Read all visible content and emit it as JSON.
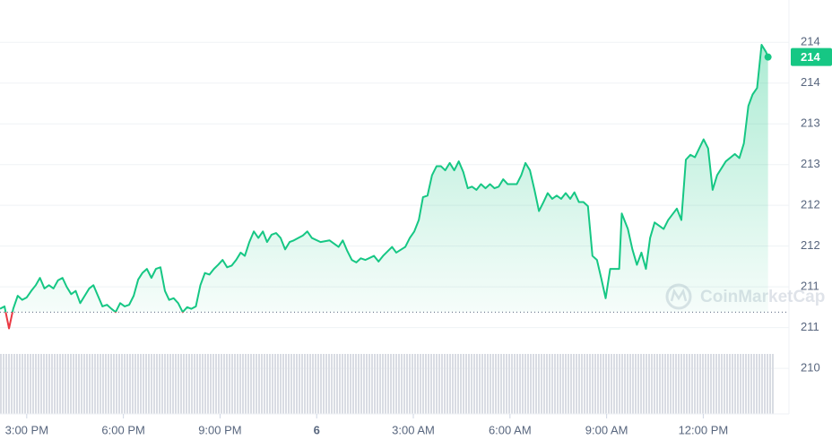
{
  "chart_data": {
    "type": "line",
    "x": [
      14.17,
      14.31,
      14.45,
      14.58,
      14.72,
      14.86,
      15.0,
      15.14,
      15.28,
      15.41,
      15.55,
      15.69,
      15.83,
      15.97,
      16.11,
      16.24,
      16.38,
      16.52,
      16.66,
      16.8,
      16.94,
      17.07,
      17.21,
      17.35,
      17.49,
      17.63,
      17.76,
      17.9,
      18.04,
      18.18,
      18.32,
      18.46,
      18.59,
      18.73,
      18.87,
      19.01,
      19.15,
      19.29,
      19.42,
      19.56,
      19.7,
      19.84,
      19.98,
      20.11,
      20.25,
      20.39,
      20.53,
      20.67,
      20.81,
      20.94,
      21.08,
      21.22,
      21.36,
      21.5,
      21.64,
      21.77,
      21.91,
      22.05,
      22.19,
      22.33,
      22.46,
      22.6,
      22.74,
      22.88,
      23.02,
      23.16,
      23.29,
      23.57,
      23.71,
      23.85,
      24.12,
      24.4,
      24.68,
      24.81,
      24.95,
      25.09,
      25.23,
      25.37,
      25.51,
      25.78,
      25.92,
      26.06,
      26.34,
      26.47,
      26.75,
      26.89,
      27.03,
      27.17,
      27.3,
      27.44,
      27.58,
      27.72,
      27.86,
      27.99,
      28.13,
      28.27,
      28.41,
      28.55,
      28.69,
      28.82,
      28.96,
      29.1,
      29.24,
      29.38,
      29.52,
      29.65,
      29.79,
      29.93,
      30.21,
      30.35,
      30.48,
      30.62,
      30.76,
      30.9,
      31.04,
      31.17,
      31.31,
      31.45,
      31.59,
      31.73,
      31.87,
      32.0,
      32.14,
      32.28,
      32.42,
      32.56,
      32.7,
      32.83,
      32.97,
      33.11,
      33.39,
      33.47,
      33.66,
      33.8,
      33.94,
      34.08,
      34.22,
      34.35,
      34.49,
      34.77,
      34.91,
      35.18,
      35.32,
      35.46,
      35.6,
      35.74,
      36.01,
      36.15,
      36.29,
      36.43,
      36.7,
      36.98,
      37.12,
      37.26,
      37.4,
      37.53,
      37.67,
      37.81,
      37.95,
      38.01
    ],
    "values": [
      210.73,
      210.76,
      210.49,
      210.73,
      210.89,
      210.84,
      210.87,
      210.95,
      211.02,
      211.11,
      210.98,
      211.02,
      210.98,
      211.08,
      211.11,
      211.0,
      210.91,
      210.95,
      210.8,
      210.89,
      210.98,
      211.02,
      210.89,
      210.76,
      210.78,
      210.73,
      210.69,
      210.8,
      210.76,
      210.78,
      210.89,
      211.09,
      211.17,
      211.22,
      211.11,
      211.22,
      211.24,
      210.95,
      210.84,
      210.86,
      210.8,
      210.69,
      210.75,
      210.73,
      210.76,
      211.02,
      211.17,
      211.15,
      211.22,
      211.27,
      211.33,
      211.24,
      211.26,
      211.33,
      211.42,
      211.38,
      211.55,
      211.68,
      211.6,
      211.68,
      211.55,
      211.64,
      211.66,
      211.6,
      211.46,
      211.55,
      211.57,
      211.63,
      211.68,
      211.6,
      211.55,
      211.57,
      211.49,
      211.57,
      211.44,
      211.33,
      211.3,
      211.35,
      211.33,
      211.38,
      211.31,
      211.38,
      211.49,
      211.42,
      211.49,
      211.6,
      211.68,
      211.82,
      212.1,
      212.12,
      212.37,
      212.48,
      212.48,
      212.43,
      212.52,
      212.43,
      212.54,
      212.41,
      212.21,
      212.23,
      212.19,
      212.26,
      212.21,
      212.26,
      212.21,
      212.23,
      212.32,
      212.26,
      212.26,
      212.37,
      212.52,
      212.43,
      212.19,
      211.93,
      212.04,
      212.15,
      212.08,
      212.12,
      212.08,
      212.15,
      212.08,
      212.16,
      212.04,
      212.04,
      211.99,
      211.38,
      211.33,
      211.11,
      210.86,
      211.22,
      211.22,
      211.9,
      211.71,
      211.46,
      211.27,
      211.42,
      211.22,
      211.6,
      211.79,
      211.71,
      211.82,
      211.96,
      211.82,
      212.56,
      212.62,
      212.59,
      212.81,
      212.7,
      212.19,
      212.37,
      212.54,
      212.63,
      212.58,
      212.76,
      213.22,
      213.36,
      213.44,
      213.97,
      213.88,
      213.82
    ],
    "color": "#16c784",
    "down_color": "#ea3943",
    "reference_line": 210.69,
    "current_price": {
      "value": 213.82,
      "label": "214"
    },
    "watermark": "CoinMarketCap",
    "xlim": [
      14.17,
      38.66
    ],
    "xticks": [
      {
        "value": 15,
        "label": "3:00 PM"
      },
      {
        "value": 18,
        "label": "6:00 PM"
      },
      {
        "value": 21,
        "label": "9:00 PM"
      },
      {
        "value": 24,
        "label": "6"
      },
      {
        "value": 27,
        "label": "3:00 AM"
      },
      {
        "value": 30,
        "label": "6:00 AM"
      },
      {
        "value": 33,
        "label": "9:00 AM"
      },
      {
        "value": 36,
        "label": "12:00 PM"
      }
    ],
    "ylim": [
      209.44,
      214.52
    ],
    "yticks": [
      214,
      {
        "value": 213.5,
        "label": "214"
      },
      213,
      {
        "value": 212.5,
        "label": "213"
      },
      212,
      {
        "value": 211.5,
        "label": "212"
      },
      211,
      {
        "value": 210.5,
        "label": "211"
      },
      210
    ],
    "grid": true
  }
}
